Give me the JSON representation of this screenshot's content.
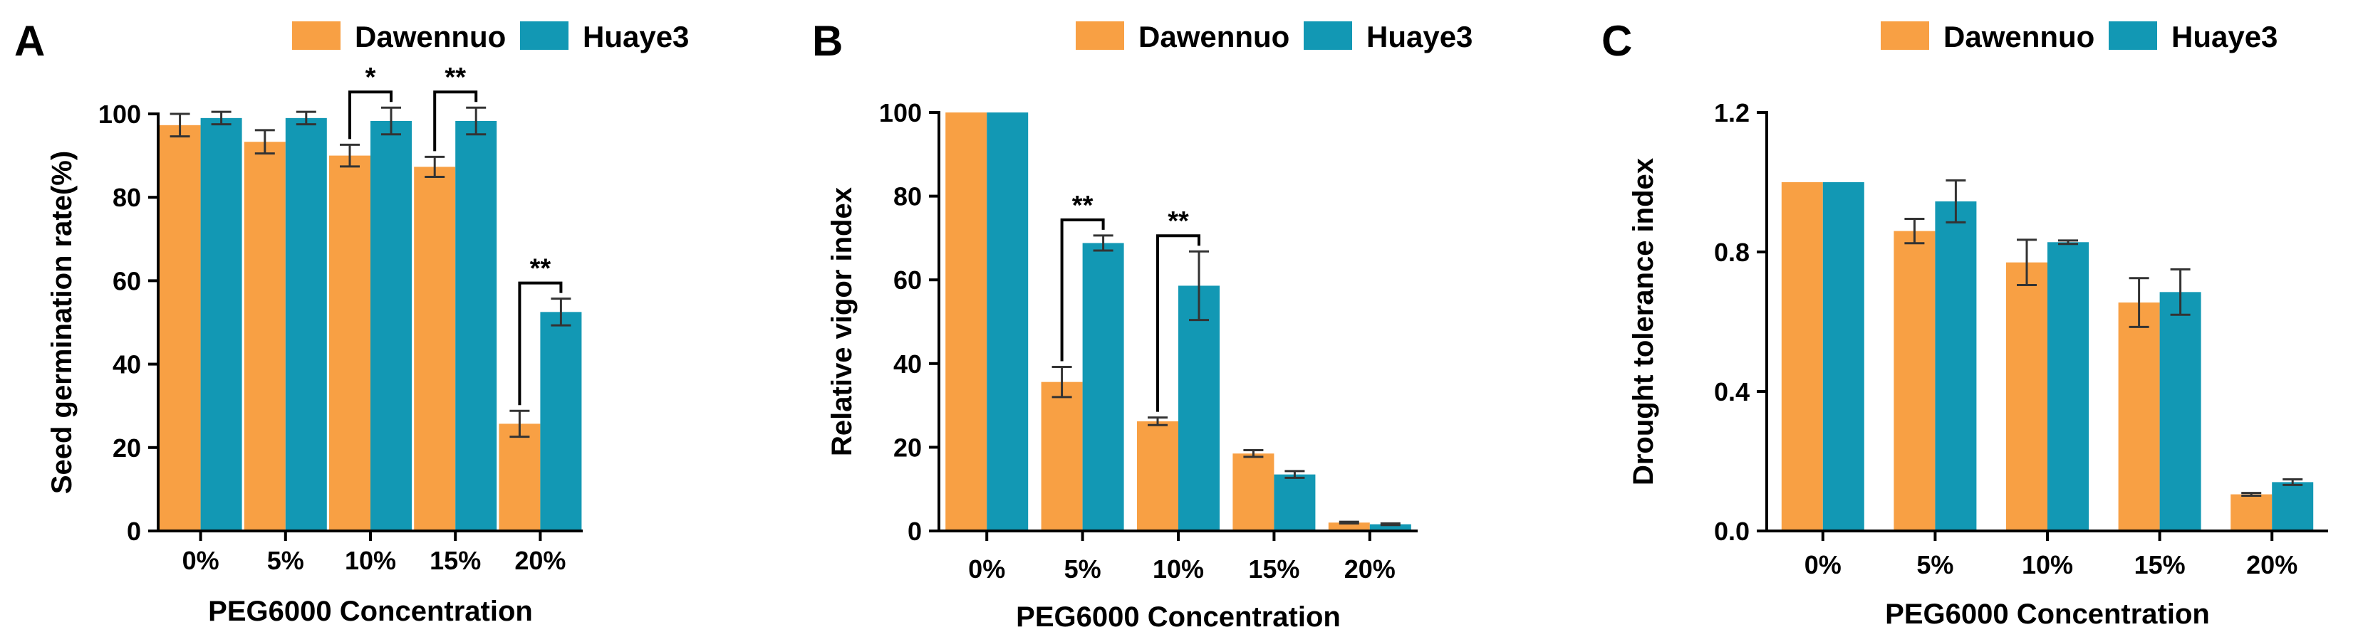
{
  "colors": {
    "dawennuo": "#F8A044",
    "huaye3": "#1298B4",
    "axis": "#000000",
    "errorbar": "#333333"
  },
  "chart_data": [
    {
      "type": "bar",
      "panel_label": "A",
      "categories": [
        "0%",
        "5%",
        "10%",
        "15%",
        "20%"
      ],
      "xlabel": "PEG6000  Concentration",
      "ylabel": "Seed germination rate(%)",
      "ylim": [
        0,
        100
      ],
      "yticks": [
        "0",
        "20",
        "40",
        "60",
        "80",
        "100"
      ],
      "legend": {
        "position": "top-right"
      },
      "series": [
        {
          "name": "Dawennuo",
          "values": [
            97.3,
            93.3,
            90.0,
            87.3,
            25.7
          ],
          "errors": [
            2.7,
            2.8,
            2.6,
            2.4,
            3.1
          ]
        },
        {
          "name": "Huaye3",
          "values": [
            99.0,
            99.0,
            98.3,
            98.3,
            52.5
          ],
          "errors": [
            1.5,
            1.5,
            3.2,
            3.2,
            3.2
          ]
        }
      ],
      "significance": [
        {
          "category": "10%",
          "label": "*"
        },
        {
          "category": "15%",
          "label": "**"
        },
        {
          "category": "20%",
          "label": "**"
        }
      ]
    },
    {
      "type": "bar",
      "panel_label": "B",
      "categories": [
        "0%",
        "5%",
        "10%",
        "15%",
        "20%"
      ],
      "xlabel": "PEG6000  Concentration",
      "ylabel": "Relative vigor index",
      "ylim": [
        0,
        100
      ],
      "yticks": [
        "0",
        "20",
        "40",
        "60",
        "80",
        "100"
      ],
      "legend": {
        "position": "top-right"
      },
      "series": [
        {
          "name": "Dawennuo",
          "values": [
            100,
            35.6,
            26.2,
            18.5,
            2.0
          ],
          "errors": [
            0,
            3.6,
            0.9,
            0.8,
            0.2
          ]
        },
        {
          "name": "Huaye3",
          "values": [
            100,
            68.8,
            58.6,
            13.5,
            1.6
          ],
          "errors": [
            0,
            1.8,
            8.2,
            0.8,
            0.2
          ]
        }
      ],
      "significance": [
        {
          "category": "5%",
          "label": "**"
        },
        {
          "category": "10%",
          "label": "**"
        }
      ]
    },
    {
      "type": "bar",
      "panel_label": "C",
      "categories": [
        "0%",
        "5%",
        "10%",
        "15%",
        "20%"
      ],
      "xlabel": "PEG6000  Concentration",
      "ylabel": "Drought tolerance index",
      "ylim": [
        0,
        1.2
      ],
      "yticks": [
        "0.0",
        "0.4",
        "0.8",
        "1.2"
      ],
      "legend": {
        "position": "top-right"
      },
      "series": [
        {
          "name": "Dawennuo",
          "values": [
            1.0,
            0.86,
            0.77,
            0.655,
            0.105
          ],
          "errors": [
            0,
            0.035,
            0.065,
            0.07,
            0.004
          ]
        },
        {
          "name": "Huaye3",
          "values": [
            1.0,
            0.945,
            0.828,
            0.685,
            0.14
          ],
          "errors": [
            0,
            0.06,
            0.005,
            0.065,
            0.008
          ]
        }
      ],
      "significance": []
    }
  ]
}
